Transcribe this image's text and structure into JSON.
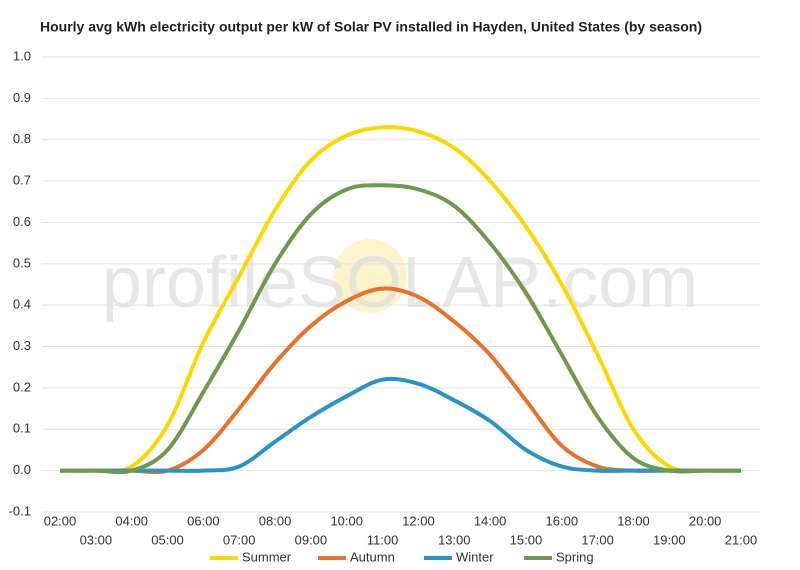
{
  "chart_data": {
    "type": "line",
    "title": "Hourly avg kWh electricity output per kW of Solar PV installed in Hayden, United States (by season)",
    "watermark": "profileSOLAR.com",
    "categories": [
      "02:00",
      "03:00",
      "04:00",
      "05:00",
      "06:00",
      "07:00",
      "08:00",
      "09:00",
      "10:00",
      "11:00",
      "12:00",
      "13:00",
      "14:00",
      "15:00",
      "16:00",
      "17:00",
      "18:00",
      "19:00",
      "20:00",
      "21:00"
    ],
    "series": [
      {
        "name": "Summer",
        "color": "#ffd700",
        "values": [
          0,
          0,
          0.01,
          0.11,
          0.31,
          0.47,
          0.63,
          0.75,
          0.81,
          0.83,
          0.82,
          0.78,
          0.7,
          0.59,
          0.45,
          0.28,
          0.1,
          0.01,
          0,
          0
        ]
      },
      {
        "name": "Autumn",
        "color": "#e8722a",
        "values": [
          0,
          0,
          0,
          0,
          0.05,
          0.15,
          0.26,
          0.35,
          0.41,
          0.44,
          0.42,
          0.36,
          0.28,
          0.17,
          0.06,
          0.01,
          0,
          0,
          0,
          0
        ]
      },
      {
        "name": "Winter",
        "color": "#2a93c8",
        "values": [
          0,
          0,
          0,
          0,
          0,
          0.01,
          0.07,
          0.13,
          0.18,
          0.22,
          0.21,
          0.17,
          0.12,
          0.05,
          0.01,
          0,
          0,
          0,
          0,
          0
        ]
      },
      {
        "name": "Spring",
        "color": "#6d9a4c",
        "values": [
          0,
          0,
          0,
          0.05,
          0.19,
          0.34,
          0.5,
          0.62,
          0.68,
          0.69,
          0.68,
          0.64,
          0.55,
          0.43,
          0.28,
          0.13,
          0.03,
          0,
          0,
          0
        ]
      }
    ],
    "ylim": [
      -0.1,
      1.0
    ],
    "yticks": [
      -0.1,
      {
        "value": 0,
        "label": "0.0"
      },
      0.1,
      0.2,
      0.3,
      0.4,
      0.5,
      0.6,
      0.7,
      0.8,
      0.9,
      {
        "value": 1,
        "label": "1.0"
      }
    ],
    "grid": true,
    "legend": "bottom"
  }
}
